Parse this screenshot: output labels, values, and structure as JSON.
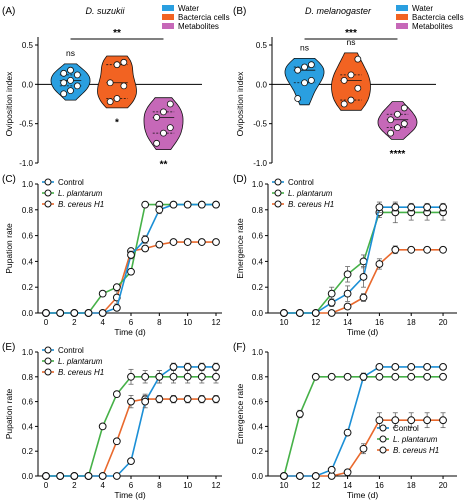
{
  "colors": {
    "water": "#2a9fe0",
    "bacteria": "#f26322",
    "metabolites": "#c668b8",
    "control": "#1b8fd6",
    "plantarum": "#46b148",
    "cereus": "#e9692d"
  },
  "chart_data": [
    {
      "panel": "(A)",
      "type": "violin",
      "title": "D. suzukii",
      "ylabel": "Oviposition index",
      "ylim": [
        -1.0,
        0.5
      ],
      "yticks": [
        "0.5",
        "0.0",
        "-0.5",
        "-1.0"
      ],
      "legend": [
        "Water",
        "Bactercia cells",
        "Metabolites"
      ],
      "groups": [
        {
          "name": "Water",
          "values": [
            0.18,
            0.12,
            0.14,
            0.05,
            0.02,
            -0.02,
            -0.08,
            -0.12
          ],
          "label": "ns"
        },
        {
          "name": "Bactercia cells",
          "values": [
            0.28,
            0.25,
            0.02,
            -0.02,
            -0.18,
            -0.22
          ],
          "label": "*"
        },
        {
          "name": "Metabolites",
          "values": [
            -0.25,
            -0.35,
            -0.42,
            -0.55,
            -0.62,
            -0.75
          ],
          "label": "**"
        }
      ],
      "bracket": "**"
    },
    {
      "panel": "(B)",
      "type": "violin",
      "title": "D. melanogaster",
      "ylabel": "Oviposition index",
      "ylim": [
        -1.0,
        0.5
      ],
      "yticks": [
        "0.5",
        "0.0",
        "-0.5",
        "-1.0"
      ],
      "legend": [
        "Water",
        "Bactercia cells",
        "Metabolites"
      ],
      "groups": [
        {
          "name": "Water",
          "values": [
            0.25,
            0.22,
            0.18,
            0.05,
            0.02,
            -0.18
          ],
          "label": "ns"
        },
        {
          "name": "Bactercia cells",
          "values": [
            0.32,
            0.12,
            0.05,
            -0.05,
            -0.2,
            -0.25
          ],
          "label": "ns"
        },
        {
          "name": "Metabolites",
          "values": [
            -0.3,
            -0.38,
            -0.45,
            -0.5,
            -0.55,
            -0.62
          ],
          "label": "****"
        }
      ],
      "bracket": "***"
    },
    {
      "panel": "(C)",
      "type": "line",
      "xlabel": "Time (d)",
      "ylabel": "Pupation rate",
      "xlim": [
        0,
        12
      ],
      "ylim": [
        0,
        1.0
      ],
      "xticks": [
        "0",
        "2",
        "4",
        "6",
        "8",
        "10",
        "12"
      ],
      "yticks": [
        "0.0",
        "0.2",
        "0.4",
        "0.6",
        "0.8",
        "1.0"
      ],
      "legend_pos": "top-left",
      "series": [
        {
          "name": "Control",
          "x": [
            0,
            1,
            2,
            3,
            4,
            5,
            6,
            7,
            8,
            9,
            10,
            11,
            12
          ],
          "y": [
            0,
            0,
            0,
            0,
            0,
            0.04,
            0.45,
            0.57,
            0.8,
            0.84,
            0.84,
            0.84,
            0.84
          ],
          "err": [
            0,
            0,
            0,
            0,
            0,
            0.01,
            0.03,
            0.03,
            0.03,
            0.02,
            0.02,
            0.02,
            0.02
          ]
        },
        {
          "name": "L. plantarum",
          "x": [
            0,
            1,
            2,
            3,
            4,
            5,
            6,
            7,
            8,
            9,
            10,
            11,
            12
          ],
          "y": [
            0,
            0,
            0,
            0,
            0.15,
            0.2,
            0.32,
            0.84,
            0.84,
            0.84,
            0.84,
            0.84,
            0.84
          ],
          "err": [
            0,
            0,
            0,
            0,
            0.01,
            0.01,
            0.02,
            0.01,
            0.01,
            0.01,
            0.01,
            0.01,
            0.01
          ]
        },
        {
          "name": "B. cereus H1",
          "x": [
            0,
            1,
            2,
            3,
            4,
            5,
            6,
            7,
            8,
            9,
            10,
            11,
            12
          ],
          "y": [
            0,
            0,
            0,
            0,
            0,
            0.12,
            0.48,
            0.5,
            0.53,
            0.55,
            0.55,
            0.55,
            0.55
          ],
          "err": [
            0,
            0,
            0,
            0,
            0,
            0.05,
            0.02,
            0.02,
            0.01,
            0.01,
            0.01,
            0.01,
            0.01
          ]
        }
      ]
    },
    {
      "panel": "(D)",
      "type": "line",
      "xlabel": "Time (d)",
      "ylabel": "Emergence rate",
      "xlim": [
        9.5,
        20.5
      ],
      "ylim": [
        0,
        1.0
      ],
      "xticks": [
        "10",
        "12",
        "14",
        "16",
        "18",
        "20"
      ],
      "yticks": [
        "0.0",
        "0.2",
        "0.4",
        "0.6",
        "0.8",
        "1.0"
      ],
      "legend_pos": "top-left",
      "series": [
        {
          "name": "Control",
          "x": [
            10,
            11,
            12,
            13,
            14,
            15,
            16,
            17,
            18,
            19,
            20
          ],
          "y": [
            0,
            0,
            0,
            0.08,
            0.15,
            0.28,
            0.82,
            0.82,
            0.82,
            0.82,
            0.82
          ],
          "err": [
            0,
            0,
            0,
            0.03,
            0.06,
            0.08,
            0.04,
            0.03,
            0.03,
            0.03,
            0.03
          ]
        },
        {
          "name": "L. plantarum",
          "x": [
            10,
            11,
            12,
            13,
            14,
            15,
            16,
            17,
            18,
            19,
            20
          ],
          "y": [
            0,
            0,
            0,
            0.15,
            0.3,
            0.4,
            0.78,
            0.78,
            0.78,
            0.78,
            0.78
          ],
          "err": [
            0,
            0,
            0,
            0.05,
            0.06,
            0.05,
            0.04,
            0.08,
            0.06,
            0.06,
            0.06
          ]
        },
        {
          "name": "B. cereus H1",
          "x": [
            10,
            11,
            12,
            13,
            14,
            15,
            16,
            17,
            18,
            19,
            20
          ],
          "y": [
            0,
            0,
            0,
            0,
            0.05,
            0.12,
            0.38,
            0.49,
            0.49,
            0.49,
            0.49
          ],
          "err": [
            0,
            0,
            0,
            0,
            0.02,
            0.03,
            0.04,
            0.03,
            0.02,
            0.02,
            0.02
          ]
        }
      ]
    },
    {
      "panel": "(E)",
      "type": "line",
      "xlabel": "Time (d)",
      "ylabel": "Pupation rate",
      "xlim": [
        0,
        12
      ],
      "ylim": [
        0,
        1.0
      ],
      "xticks": [
        "0",
        "2",
        "4",
        "6",
        "8",
        "10",
        "12"
      ],
      "yticks": [
        "0.0",
        "0.2",
        "0.4",
        "0.6",
        "0.8",
        "1.0"
      ],
      "legend_pos": "top-left",
      "series": [
        {
          "name": "Control",
          "x": [
            0,
            1,
            2,
            3,
            4,
            5,
            6,
            7,
            8,
            9,
            10,
            11,
            12
          ],
          "y": [
            0,
            0,
            0,
            0,
            0,
            0,
            0.12,
            0.6,
            0.8,
            0.88,
            0.88,
            0.88,
            0.88
          ],
          "err": [
            0,
            0,
            0,
            0,
            0,
            0,
            0.02,
            0.05,
            0.05,
            0.03,
            0.03,
            0.03,
            0.03
          ]
        },
        {
          "name": "L. plantarum",
          "x": [
            0,
            1,
            2,
            3,
            4,
            5,
            6,
            7,
            8,
            9,
            10,
            11,
            12
          ],
          "y": [
            0,
            0,
            0,
            0,
            0.4,
            0.66,
            0.8,
            0.8,
            0.8,
            0.8,
            0.8,
            0.8,
            0.8
          ],
          "err": [
            0,
            0,
            0,
            0,
            0.02,
            0.02,
            0.06,
            0.05,
            0.05,
            0.05,
            0.05,
            0.05,
            0.05
          ]
        },
        {
          "name": "B. cereus H1",
          "x": [
            0,
            1,
            2,
            3,
            4,
            5,
            6,
            7,
            8,
            9,
            10,
            11,
            12
          ],
          "y": [
            0,
            0,
            0,
            0,
            0,
            0.28,
            0.6,
            0.62,
            0.62,
            0.62,
            0.62,
            0.62,
            0.62
          ],
          "err": [
            0,
            0,
            0,
            0,
            0,
            0.02,
            0.05,
            0.04,
            0.03,
            0.03,
            0.03,
            0.03,
            0.03
          ]
        }
      ]
    },
    {
      "panel": "(F)",
      "type": "line",
      "xlabel": "Time (d)",
      "ylabel": "Emergence rate",
      "xlim": [
        9.5,
        20.5
      ],
      "ylim": [
        0,
        1.0
      ],
      "xticks": [
        "10",
        "12",
        "14",
        "16",
        "18",
        "20"
      ],
      "yticks": [
        "0.0",
        "0.2",
        "0.4",
        "0.6",
        "0.8",
        "1.0"
      ],
      "legend_pos": "bottom-right",
      "series": [
        {
          "name": "Control",
          "x": [
            10,
            11,
            12,
            13,
            14,
            15,
            16,
            17,
            18,
            19,
            20
          ],
          "y": [
            0,
            0,
            0,
            0.05,
            0.35,
            0.8,
            0.88,
            0.88,
            0.88,
            0.88,
            0.88
          ],
          "err": [
            0,
            0,
            0,
            0.01,
            0.02,
            0.03,
            0.02,
            0.02,
            0.02,
            0.02,
            0.02
          ]
        },
        {
          "name": "L. plantarum",
          "x": [
            10,
            11,
            12,
            13,
            14,
            15,
            16,
            17,
            18,
            19,
            20
          ],
          "y": [
            0,
            0.5,
            0.8,
            0.8,
            0.8,
            0.8,
            0.8,
            0.8,
            0.8,
            0.8,
            0.8
          ],
          "err": [
            0,
            0.03,
            0.02,
            0.02,
            0.02,
            0.02,
            0.02,
            0.02,
            0.02,
            0.02,
            0.02
          ]
        },
        {
          "name": "B. cereus H1",
          "x": [
            10,
            11,
            12,
            13,
            14,
            15,
            16,
            17,
            18,
            19,
            20
          ],
          "y": [
            0,
            0,
            0,
            0,
            0.03,
            0.22,
            0.45,
            0.45,
            0.45,
            0.45,
            0.45
          ],
          "err": [
            0,
            0,
            0,
            0,
            0.02,
            0.04,
            0.06,
            0.06,
            0.06,
            0.06,
            0.06
          ]
        }
      ]
    }
  ]
}
